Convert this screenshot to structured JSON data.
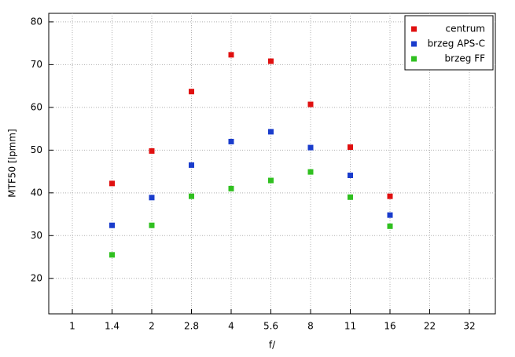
{
  "chart_data": {
    "type": "scatter",
    "xlabel": "f/",
    "ylabel": "MTF50 [lpmm]",
    "categories": [
      "1",
      "1.4",
      "2",
      "2.8",
      "4",
      "5.6",
      "8",
      "11",
      "16",
      "22",
      "32"
    ],
    "series": [
      {
        "name": "centrum",
        "color": "#e01010",
        "values": [
          null,
          42.2,
          49.8,
          63.7,
          72.3,
          70.8,
          60.7,
          50.7,
          39.2,
          null,
          null
        ]
      },
      {
        "name": "brzeg APS-C",
        "color": "#1a3ccc",
        "values": [
          null,
          32.4,
          38.9,
          46.5,
          52.0,
          54.3,
          50.6,
          44.1,
          34.8,
          null,
          null
        ]
      },
      {
        "name": "brzeg FF",
        "color": "#30c020",
        "values": [
          null,
          25.5,
          32.4,
          39.2,
          41.0,
          42.9,
          44.9,
          39.0,
          32.2,
          null,
          null
        ]
      }
    ],
    "ylim": [
      11.7,
      82
    ],
    "yticks": [
      20,
      30,
      40,
      50,
      60,
      70,
      80
    ],
    "grid": true,
    "legend": "upper right"
  }
}
